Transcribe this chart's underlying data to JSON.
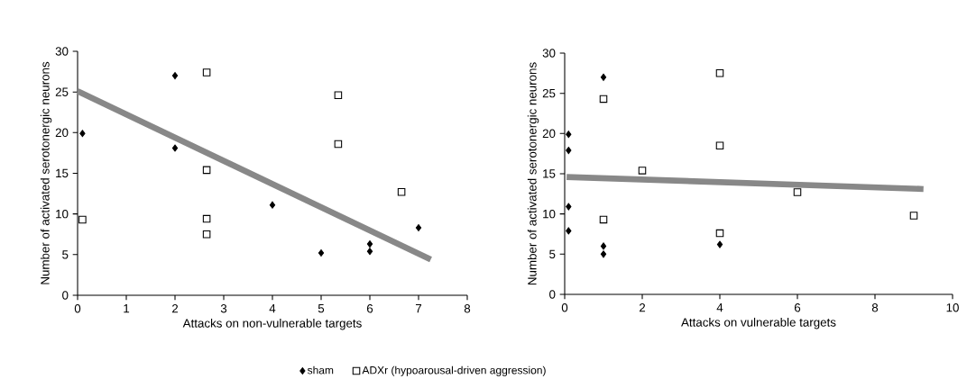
{
  "chart_data": [
    {
      "type": "scatter",
      "xlabel": "Attacks on non-vulnerable targets",
      "ylabel": "Number of activated serotonergic neurons",
      "xlim": [
        0,
        8
      ],
      "ylim": [
        0,
        30
      ],
      "xticks": [
        0,
        1,
        2,
        3,
        4,
        5,
        6,
        7,
        8
      ],
      "yticks": [
        0,
        5,
        10,
        15,
        20,
        25,
        30
      ],
      "legend": "bottom",
      "grid": false,
      "series": [
        {
          "name": "sham",
          "marker": "diamond",
          "color": "#000000",
          "x": [
            0.1,
            2,
            2,
            4,
            5,
            6,
            6,
            7
          ],
          "values": [
            19.9,
            27,
            18.1,
            11.1,
            5.2,
            6.3,
            5.4,
            8.3
          ]
        },
        {
          "name": "ADXr (hypoarousal-driven aggression)",
          "marker": "square",
          "color": "#000000",
          "x": [
            0.1,
            2.65,
            2.65,
            2.65,
            2.65,
            5.35,
            5.35,
            6.65
          ],
          "values": [
            9.3,
            27.4,
            15.4,
            9.4,
            7.5,
            24.6,
            18.6,
            12.7
          ]
        },
        {
          "type": "line",
          "marker": "none",
          "color": "#888888",
          "x": [
            0,
            7.25
          ],
          "values": [
            25.1,
            4.4
          ]
        }
      ]
    },
    {
      "type": "scatter",
      "xlabel": "Attacks on vulnerable targets",
      "ylabel": "Number of activated serotonergic neurons",
      "xlim": [
        0,
        10
      ],
      "ylim": [
        0,
        30
      ],
      "xticks": [
        0,
        2,
        4,
        6,
        8,
        10
      ],
      "yticks": [
        0,
        5,
        10,
        15,
        20,
        25,
        30
      ],
      "grid": false,
      "series": [
        {
          "marker": "diamond",
          "color": "#000000",
          "x": [
            0.1,
            0.1,
            0.1,
            0.1,
            1,
            1,
            1,
            4
          ],
          "values": [
            19.9,
            17.9,
            10.9,
            7.9,
            27,
            6,
            5,
            6.2
          ]
        },
        {
          "marker": "square",
          "color": "#000000",
          "x": [
            1,
            1,
            2,
            4,
            4,
            4,
            6,
            9
          ],
          "values": [
            24.3,
            9.3,
            15.4,
            27.5,
            18.5,
            7.6,
            12.7,
            9.8
          ]
        },
        {
          "type": "line",
          "marker": "none",
          "color": "#888888",
          "x": [
            0.05,
            9.25
          ],
          "values": [
            14.6,
            13.1
          ]
        }
      ]
    }
  ]
}
